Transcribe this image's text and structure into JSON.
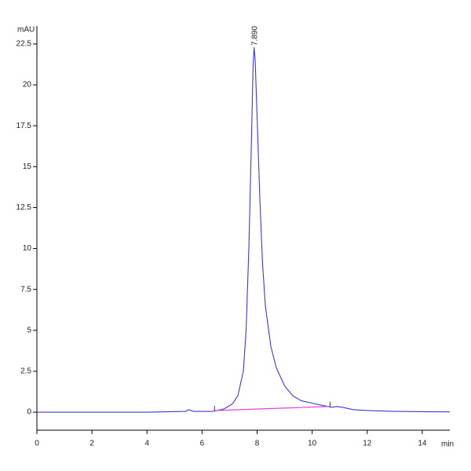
{
  "chart_data": {
    "type": "line",
    "x_label": "min",
    "y_label": "mAU",
    "peak_label": "7.890",
    "x": [
      0,
      2,
      4,
      5.4,
      5.5,
      5.7,
      6.4,
      6.8,
      7.1,
      7.3,
      7.5,
      7.6,
      7.7,
      7.8,
      7.85,
      7.89,
      7.93,
      8.0,
      8.1,
      8.2,
      8.3,
      8.5,
      8.7,
      9.0,
      9.3,
      9.6,
      10.0,
      10.4,
      10.7,
      10.9,
      11.1,
      11.5,
      12,
      13,
      14,
      15
    ],
    "series": [
      {
        "color": "#3a3ad4",
        "values": [
          0,
          0,
          0,
          0.05,
          0.15,
          0.05,
          0.05,
          0.2,
          0.5,
          1.0,
          2.5,
          5,
          10,
          17,
          21,
          22.3,
          21.5,
          18,
          13,
          9,
          6.5,
          4,
          2.7,
          1.6,
          1.0,
          0.7,
          0.55,
          0.4,
          0.3,
          0.35,
          0.3,
          0.15,
          0.1,
          0.05,
          0.03,
          0.02
        ]
      }
    ],
    "baseline": {
      "color": "#e040e0",
      "x": [
        6.45,
        10.65
      ],
      "values": [
        0.1,
        0.35
      ]
    },
    "xlim": [
      0,
      15
    ],
    "ylim": [
      -1.1,
      23.6
    ],
    "xticks": [
      0,
      2,
      4,
      6,
      8,
      10,
      12,
      14
    ],
    "yticks": [
      0,
      2.5,
      5,
      7.5,
      10,
      12.5,
      15,
      17.5,
      20,
      22.5
    ]
  }
}
